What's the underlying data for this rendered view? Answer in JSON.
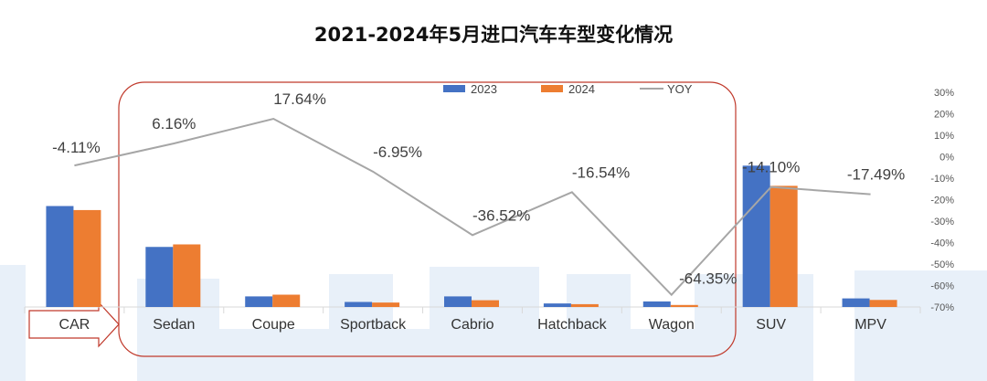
{
  "chart_data": {
    "type": "bar",
    "title": "2021-2024年5月进口汽车车型变化情况",
    "categories": [
      "CAR",
      "Sedan",
      "Coupe",
      "Sportback",
      "Cabrio",
      "Hatchback",
      "Wagon",
      "SUV",
      "MPV"
    ],
    "series": [
      {
        "name": "2023",
        "type": "bar",
        "axis": "left",
        "color": "#4472c4",
        "values": [
          100,
          59.5,
          10.5,
          5.0,
          10.5,
          3.5,
          5.5,
          140,
          8.5
        ]
      },
      {
        "name": "2024",
        "type": "bar",
        "axis": "left",
        "color": "#ed7d31",
        "values": [
          96,
          62,
          12.2,
          4.4,
          6.7,
          2.8,
          2.0,
          120,
          7.0
        ]
      },
      {
        "name": "YOY",
        "type": "line",
        "axis": "right",
        "color": "#a6a6a6",
        "values": [
          -4.11,
          6.16,
          17.64,
          -6.95,
          -36.52,
          -16.54,
          -64.35,
          -14.1,
          -17.49
        ]
      }
    ],
    "data_labels": [
      "-4.11%",
      "6.16%",
      "17.64%",
      "-6.95%",
      "-36.52%",
      "-16.54%",
      "-64.35%",
      "-14.10%",
      "-17.49%"
    ],
    "y2_ticks": [
      "30%",
      "20%",
      "10%",
      "0%",
      "-10%",
      "-20%",
      "-30%",
      "-40%",
      "-50%",
      "-60%",
      "-70%"
    ],
    "y2_lim": [
      -70,
      30
    ],
    "legend_position": "top-center",
    "grid": false
  }
}
